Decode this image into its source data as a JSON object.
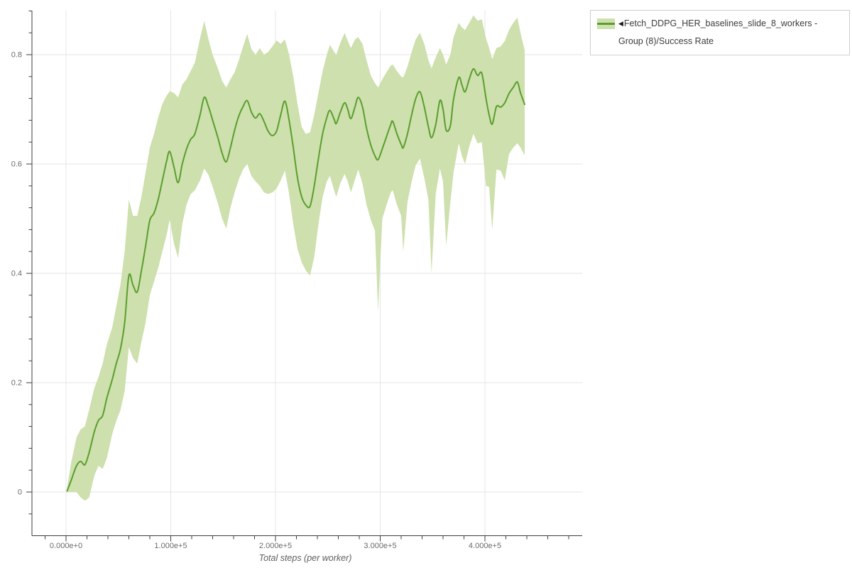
{
  "legend": {
    "collapse_icon": "◀",
    "label": "Fetch_DDPG_HER_baselines_slide_8_workers - Group (8)/Success Rate"
  },
  "chart_data": {
    "type": "line",
    "title": "",
    "xlabel": "Total steps (per worker)",
    "ylabel": "",
    "legend_position": "outside-top-right",
    "grid": true,
    "x_tick_values": [
      0,
      100000,
      200000,
      300000,
      400000
    ],
    "x_tick_labels": [
      "0.000e+0",
      "1.000e+5",
      "2.000e+5",
      "3.000e+5",
      "4.000e+5"
    ],
    "x_minor_tick_step": 20000,
    "y_tick_values": [
      0,
      0.2,
      0.4,
      0.6,
      0.8
    ],
    "y_tick_labels": [
      "0",
      "0.2",
      "0.4",
      "0.6",
      "0.8"
    ],
    "y_minor_tick_step": 0.04,
    "xlim": [
      -32500,
      493000
    ],
    "ylim": [
      -0.079,
      0.881
    ],
    "colors": {
      "line": "#5a9e2d",
      "band": "#cde0ad",
      "grid": "#e5e5e5",
      "axis": "#3d3d3d",
      "tick_label": "#6b6b6b",
      "axis_title": "#5f5f5f",
      "legend_border": "#cfcfcf",
      "legend_text": "#3c3c3c"
    },
    "series": [
      {
        "name": "Fetch_DDPG_HER_baselines_slide_8_workers - Group (8)/Success Rate",
        "metric": "Success Rate",
        "x_steps": [
          1000,
          5000,
          10000,
          14000,
          18000,
          22000,
          27000,
          31000,
          35000,
          39000,
          44000,
          48000,
          52000,
          56000,
          60000,
          64000,
          68000,
          72000,
          76000,
          80000,
          84000,
          88000,
          92000,
          96000,
          99000,
          103000,
          107000,
          111000,
          115000,
          119000,
          123000,
          128000,
          132000,
          136000,
          140000,
          145000,
          149000,
          153000,
          157000,
          161000,
          165000,
          169000,
          173000,
          177000,
          181000,
          185000,
          189000,
          193000,
          197000,
          201000,
          205000,
          209000,
          213000,
          217000,
          221000,
          225000,
          229000,
          233000,
          237000,
          241000,
          245000,
          249000,
          252000,
          256000,
          258000,
          262000,
          266000,
          269000,
          272000,
          276000,
          279000,
          283000,
          287000,
          291000,
          295000,
          298000,
          302000,
          306000,
          310000,
          312000,
          316000,
          320000,
          322000,
          326000,
          330000,
          334000,
          338000,
          342000,
          346000,
          349000,
          353000,
          357000,
          360000,
          363000,
          367000,
          370000,
          375000,
          378000,
          381000,
          385000,
          389000,
          393000,
          397000,
          401000,
          404000,
          407000,
          411000,
          415000,
          419000,
          423000,
          427000,
          431000,
          434000,
          438000
        ],
        "mean": [
          0.002,
          0.022,
          0.048,
          0.056,
          0.05,
          0.072,
          0.11,
          0.131,
          0.14,
          0.172,
          0.205,
          0.235,
          0.262,
          0.31,
          0.396,
          0.378,
          0.366,
          0.405,
          0.45,
          0.497,
          0.51,
          0.535,
          0.57,
          0.605,
          0.623,
          0.595,
          0.566,
          0.6,
          0.627,
          0.645,
          0.655,
          0.69,
          0.722,
          0.705,
          0.68,
          0.648,
          0.62,
          0.604,
          0.63,
          0.662,
          0.688,
          0.705,
          0.716,
          0.695,
          0.684,
          0.692,
          0.678,
          0.66,
          0.652,
          0.66,
          0.69,
          0.715,
          0.68,
          0.63,
          0.575,
          0.54,
          0.525,
          0.523,
          0.56,
          0.61,
          0.655,
          0.685,
          0.698,
          0.682,
          0.674,
          0.695,
          0.712,
          0.7,
          0.683,
          0.705,
          0.722,
          0.705,
          0.665,
          0.635,
          0.615,
          0.608,
          0.628,
          0.65,
          0.672,
          0.678,
          0.655,
          0.636,
          0.63,
          0.655,
          0.69,
          0.72,
          0.732,
          0.705,
          0.668,
          0.648,
          0.672,
          0.716,
          0.7,
          0.662,
          0.67,
          0.718,
          0.758,
          0.745,
          0.732,
          0.755,
          0.774,
          0.762,
          0.766,
          0.72,
          0.69,
          0.673,
          0.705,
          0.704,
          0.712,
          0.729,
          0.74,
          0.75,
          0.73,
          0.709
        ],
        "lower": [
          0.0,
          0.0,
          0.0,
          -0.01,
          -0.016,
          -0.01,
          0.03,
          0.048,
          0.042,
          0.062,
          0.105,
          0.13,
          0.15,
          0.185,
          0.265,
          0.245,
          0.235,
          0.275,
          0.31,
          0.36,
          0.385,
          0.41,
          0.44,
          0.47,
          0.498,
          0.455,
          0.428,
          0.49,
          0.525,
          0.545,
          0.552,
          0.57,
          0.592,
          0.58,
          0.558,
          0.528,
          0.5,
          0.482,
          0.52,
          0.548,
          0.572,
          0.59,
          0.6,
          0.578,
          0.568,
          0.56,
          0.548,
          0.545,
          0.548,
          0.555,
          0.57,
          0.588,
          0.545,
          0.49,
          0.445,
          0.42,
          0.405,
          0.396,
          0.43,
          0.49,
          0.54,
          0.568,
          0.578,
          0.552,
          0.54,
          0.565,
          0.582,
          0.568,
          0.548,
          0.572,
          0.59,
          0.565,
          0.525,
          0.498,
          0.478,
          0.33,
          0.5,
          0.525,
          0.548,
          0.552,
          0.525,
          0.505,
          0.44,
          0.53,
          0.568,
          0.598,
          0.61,
          0.575,
          0.535,
          0.4,
          0.545,
          0.592,
          0.568,
          0.45,
          0.53,
          0.585,
          0.638,
          0.615,
          0.6,
          0.632,
          0.655,
          0.638,
          0.64,
          0.56,
          0.558,
          0.48,
          0.59,
          0.588,
          0.57,
          0.618,
          0.63,
          0.638,
          0.63,
          0.616
        ],
        "upper": [
          0.008,
          0.055,
          0.1,
          0.115,
          0.12,
          0.15,
          0.19,
          0.21,
          0.235,
          0.27,
          0.3,
          0.34,
          0.38,
          0.44,
          0.535,
          0.505,
          0.505,
          0.54,
          0.585,
          0.63,
          0.655,
          0.685,
          0.71,
          0.725,
          0.733,
          0.73,
          0.722,
          0.745,
          0.755,
          0.77,
          0.785,
          0.83,
          0.862,
          0.828,
          0.8,
          0.775,
          0.752,
          0.74,
          0.755,
          0.768,
          0.79,
          0.815,
          0.838,
          0.81,
          0.8,
          0.812,
          0.8,
          0.805,
          0.815,
          0.826,
          0.82,
          0.828,
          0.8,
          0.76,
          0.71,
          0.668,
          0.655,
          0.658,
          0.69,
          0.73,
          0.77,
          0.8,
          0.818,
          0.805,
          0.8,
          0.822,
          0.84,
          0.825,
          0.812,
          0.828,
          0.832,
          0.82,
          0.79,
          0.762,
          0.748,
          0.74,
          0.755,
          0.768,
          0.78,
          0.782,
          0.77,
          0.76,
          0.758,
          0.778,
          0.805,
          0.828,
          0.84,
          0.82,
          0.79,
          0.775,
          0.795,
          0.812,
          0.8,
          0.782,
          0.8,
          0.832,
          0.858,
          0.85,
          0.845,
          0.858,
          0.872,
          0.862,
          0.865,
          0.83,
          0.812,
          0.792,
          0.812,
          0.815,
          0.825,
          0.845,
          0.858,
          0.868,
          0.84,
          0.808
        ]
      }
    ]
  }
}
